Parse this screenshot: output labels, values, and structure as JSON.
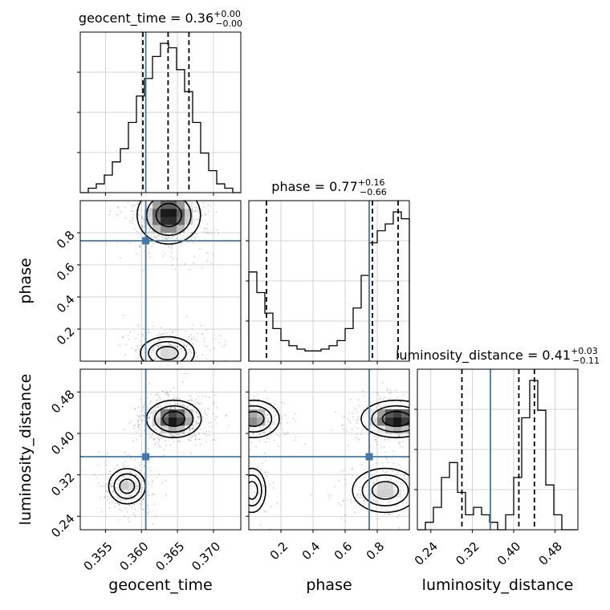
{
  "chart_data": {
    "type": "corner",
    "parameters": [
      {
        "name": "geocent_time",
        "label": "geocent_time",
        "range": [
          0.3515,
          0.3738
        ],
        "ticks": [
          "0.355",
          "0.360",
          "0.365",
          "0.370"
        ],
        "tick_values": [
          0.355,
          0.36,
          0.365,
          0.37
        ],
        "truth": 0.3606,
        "title": {
          "prefix": "geocent_time = ",
          "value": "0.36",
          "plus": "+0.00",
          "minus": "−0.00"
        },
        "quantiles": [
          0.3602,
          0.3637,
          0.3666
        ]
      },
      {
        "name": "phase",
        "label": "phase",
        "range": [
          0.0,
          1.0
        ],
        "ticks": [
          "0.2",
          "0.4",
          "0.6",
          "0.8"
        ],
        "tick_values": [
          0.2,
          0.4,
          0.6,
          0.8
        ],
        "truth": 0.75,
        "title": {
          "prefix": "phase = ",
          "value": "0.77",
          "plus": "+0.16",
          "minus": "−0.66"
        },
        "quantiles": [
          0.11,
          0.77,
          0.93
        ]
      },
      {
        "name": "luminosity_distance",
        "label": "luminosity_distance",
        "range": [
          0.214,
          0.524
        ],
        "ticks": [
          "0.24",
          "0.32",
          "0.40",
          "0.48"
        ],
        "tick_values": [
          0.24,
          0.32,
          0.4,
          0.48
        ],
        "truth": 0.355,
        "title": {
          "prefix": "luminosity_distance = ",
          "value": "0.41",
          "plus": "+0.03",
          "minus": "−0.11"
        },
        "quantiles": [
          0.3,
          0.41,
          0.44
        ]
      }
    ],
    "histograms": {
      "geocent_time": [
        0,
        1,
        2,
        4,
        7,
        10,
        16,
        22,
        26,
        31,
        34,
        33,
        28,
        23,
        16,
        9,
        5,
        2,
        1,
        0
      ],
      "phase": [
        0.52,
        0.4,
        0.28,
        0.19,
        0.12,
        0.09,
        0.07,
        0.06,
        0.06,
        0.07,
        0.09,
        0.12,
        0.19,
        0.31,
        0.5,
        0.69,
        0.76,
        0.8,
        0.87,
        0.83
      ],
      "luminosity_distance": [
        0,
        1,
        3,
        7,
        9,
        5,
        2,
        3,
        2,
        1,
        0,
        2,
        7,
        15,
        20,
        16,
        6,
        2,
        0,
        0
      ]
    },
    "density_blobs": {
      "phase_vs_geocent_time": [
        {
          "x": 0.3638,
          "y": 0.91,
          "sx": 0.0022,
          "sy": 0.09,
          "w": 1.0
        },
        {
          "x": 0.3636,
          "y": 0.05,
          "sx": 0.0022,
          "sy": 0.06,
          "w": 0.45
        }
      ],
      "luminosity_distance_vs_geocent_time": [
        {
          "x": 0.3645,
          "y": 0.428,
          "sx": 0.0019,
          "sy": 0.018,
          "w": 1.0
        },
        {
          "x": 0.358,
          "y": 0.298,
          "sx": 0.0015,
          "sy": 0.02,
          "w": 0.45
        }
      ],
      "luminosity_distance_vs_phase": [
        {
          "x": 0.92,
          "y": 0.428,
          "sx": 0.11,
          "sy": 0.018,
          "w": 1.0
        },
        {
          "x": 0.03,
          "y": 0.428,
          "sx": 0.08,
          "sy": 0.018,
          "w": 0.65
        },
        {
          "x": 0.85,
          "y": 0.29,
          "sx": 0.12,
          "sy": 0.025,
          "w": 0.45
        },
        {
          "x": 0.02,
          "y": 0.29,
          "sx": 0.05,
          "sy": 0.025,
          "w": 0.2
        }
      ]
    },
    "colors": {
      "truth": "#4477aa",
      "hist": "#000000",
      "grid": "#c8c8c8"
    },
    "grid": true,
    "title": "",
    "subtitle": ""
  }
}
